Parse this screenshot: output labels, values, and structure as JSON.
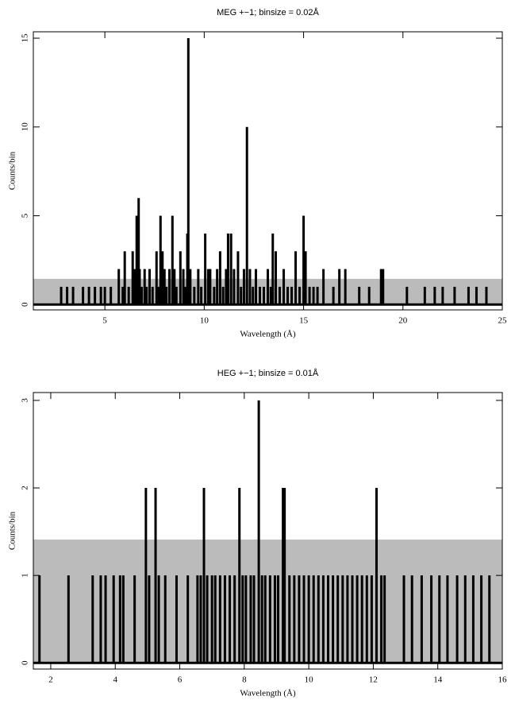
{
  "chart_data": [
    {
      "type": "bar",
      "title": "MEG +−1; binsize = 0.02Å",
      "xlabel": "Wavelength (Å)",
      "ylabel": "Counts/bin",
      "color": "#000000",
      "error_color": "#bbbbbb",
      "error_band": 1.45,
      "xlim": [
        1.4,
        25
      ],
      "ylim": [
        -0.3,
        15.36
      ],
      "xticks": [
        5,
        10,
        15,
        20,
        25
      ],
      "yticks": [
        0,
        5,
        10,
        15
      ],
      "x": [
        2.8,
        3.1,
        3.4,
        3.9,
        4.2,
        4.5,
        4.8,
        5.0,
        5.3,
        5.7,
        5.9,
        6.0,
        6.2,
        6.4,
        6.5,
        6.6,
        6.7,
        6.75,
        6.85,
        7.0,
        7.1,
        7.25,
        7.4,
        7.6,
        7.7,
        7.8,
        7.9,
        8.0,
        8.1,
        8.25,
        8.4,
        8.5,
        8.6,
        8.8,
        8.95,
        9.05,
        9.15,
        9.2,
        9.3,
        9.5,
        9.7,
        9.85,
        10.05,
        10.2,
        10.3,
        10.5,
        10.65,
        10.8,
        10.95,
        11.1,
        11.2,
        11.35,
        11.5,
        11.7,
        11.85,
        12.0,
        12.15,
        12.3,
        12.45,
        12.6,
        12.8,
        13.0,
        13.2,
        13.35,
        13.45,
        13.6,
        13.8,
        14.0,
        14.2,
        14.4,
        14.6,
        14.8,
        15.0,
        15.1,
        15.3,
        15.5,
        15.7,
        16.0,
        16.5,
        16.8,
        17.1,
        17.8,
        18.3,
        18.9,
        19.0,
        20.2,
        21.1,
        21.6,
        22.0,
        22.6,
        23.3,
        23.7,
        24.2
      ],
      "values": [
        1,
        1,
        1,
        1,
        1,
        1,
        1,
        1,
        1,
        2,
        1,
        3,
        1,
        3,
        2,
        5,
        6,
        2,
        1,
        2,
        1,
        2,
        1,
        3,
        1,
        5,
        3,
        2,
        1,
        2,
        5,
        2,
        1,
        3,
        2,
        1,
        4,
        15,
        2,
        1,
        2,
        1,
        4,
        2,
        2,
        1,
        2,
        3,
        1,
        2,
        4,
        4,
        2,
        3,
        1,
        2,
        10,
        2,
        1,
        2,
        1,
        1,
        2,
        1,
        4,
        3,
        1,
        2,
        1,
        1,
        3,
        1,
        5,
        3,
        1,
        1,
        1,
        2,
        1,
        2,
        2,
        1,
        1,
        2,
        2,
        1,
        1,
        1,
        1,
        1,
        1,
        1,
        1
      ]
    },
    {
      "type": "bar",
      "title": "HEG +−1; binsize = 0.01Å",
      "xlabel": "Wavelength (Å)",
      "ylabel": "Counts/bin",
      "color": "#000000",
      "error_color": "#bbbbbb",
      "error_band": 1.41,
      "xlim": [
        1.46,
        16
      ],
      "ylim": [
        -0.07,
        3.09
      ],
      "xticks": [
        2,
        4,
        6,
        8,
        10,
        12,
        14,
        16
      ],
      "yticks": [
        0,
        1,
        2,
        3
      ],
      "x": [
        1.65,
        2.55,
        3.3,
        3.55,
        3.7,
        3.95,
        4.15,
        4.25,
        4.6,
        4.95,
        5.05,
        5.25,
        5.35,
        5.55,
        5.9,
        6.25,
        6.55,
        6.65,
        6.75,
        6.85,
        7.0,
        7.1,
        7.25,
        7.4,
        7.55,
        7.7,
        7.85,
        7.95,
        8.05,
        8.2,
        8.3,
        8.45,
        8.55,
        8.65,
        8.8,
        8.95,
        9.05,
        9.2,
        9.25,
        9.4,
        9.55,
        9.7,
        9.85,
        10.0,
        10.15,
        10.3,
        10.45,
        10.6,
        10.75,
        10.9,
        11.05,
        11.2,
        11.35,
        11.5,
        11.65,
        11.8,
        11.95,
        12.1,
        12.25,
        12.35,
        12.95,
        13.2,
        13.5,
        13.8,
        14.05,
        14.3,
        14.6,
        14.85,
        15.1,
        15.35,
        15.6
      ],
      "values": [
        1,
        1,
        1,
        1,
        1,
        1,
        1,
        1,
        1,
        2,
        1,
        2,
        1,
        1,
        1,
        1,
        1,
        1,
        2,
        1,
        1,
        1,
        1,
        1,
        1,
        1,
        2,
        1,
        1,
        1,
        1,
        3,
        1,
        1,
        1,
        1,
        1,
        2,
        2,
        1,
        1,
        1,
        1,
        1,
        1,
        1,
        1,
        1,
        1,
        1,
        1,
        1,
        1,
        1,
        1,
        1,
        1,
        2,
        1,
        1,
        1,
        1,
        1,
        1,
        1,
        1,
        1,
        1,
        1,
        1,
        1
      ]
    }
  ]
}
